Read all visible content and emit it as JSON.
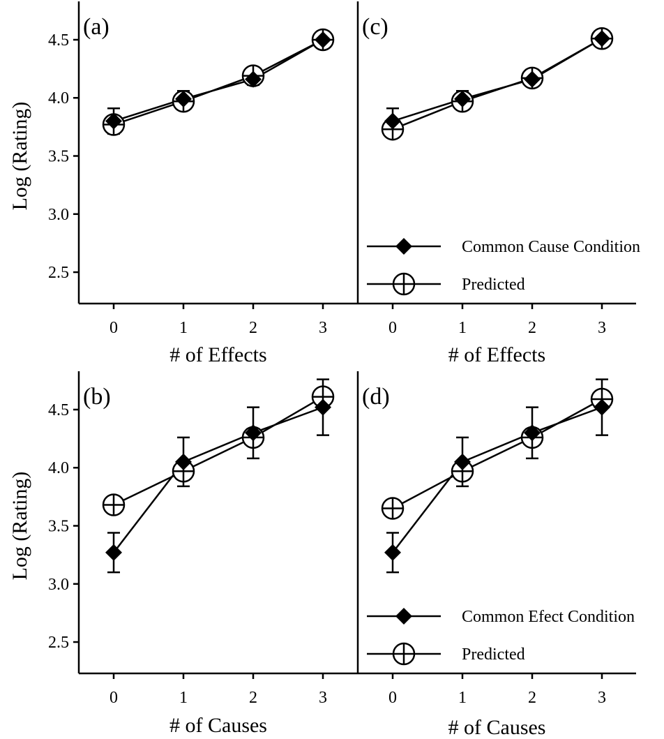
{
  "chart_data": [
    {
      "panel_label": "(a)",
      "type": "line",
      "xlabel": "# of Effects",
      "ylabel": "Log (Rating)",
      "x": [
        0,
        1,
        2,
        3
      ],
      "x_tick_labels": [
        "0",
        "1",
        "2",
        "3"
      ],
      "y_ticks": [
        "2.5",
        "3.0",
        "3.5",
        "4.0",
        "4.5"
      ],
      "ylim": [
        2.23,
        4.77
      ],
      "series": [
        {
          "marker": "diamond",
          "values": [
            3.8,
            3.99,
            4.16,
            4.5
          ],
          "err": [
            0.11,
            0.07,
            0.05,
            0.05
          ]
        },
        {
          "marker": "crossed-circle",
          "values": [
            3.77,
            3.97,
            4.19,
            4.5
          ]
        }
      ],
      "legend": null
    },
    {
      "panel_label": "(c)",
      "type": "line",
      "xlabel": "# of Effects",
      "ylabel": "",
      "x": [
        0,
        1,
        2,
        3
      ],
      "x_tick_labels": [
        "0",
        "1",
        "2",
        "3"
      ],
      "y_ticks": [],
      "ylim": [
        2.23,
        4.77
      ],
      "series": [
        {
          "name": "Common Cause Condition",
          "marker": "diamond",
          "values": [
            3.8,
            3.99,
            4.16,
            4.51
          ],
          "err": [
            0.11,
            0.07,
            0.05,
            0.05
          ]
        },
        {
          "name": "Predicted",
          "marker": "crossed-circle",
          "values": [
            3.73,
            3.97,
            4.17,
            4.51
          ]
        }
      ],
      "legend": "bottom-right"
    },
    {
      "panel_label": "(b)",
      "type": "line",
      "xlabel": "# of Causes",
      "ylabel": "Log (Rating)",
      "x": [
        0,
        1,
        2,
        3
      ],
      "x_tick_labels": [
        "0",
        "1",
        "2",
        "3"
      ],
      "y_ticks": [
        "2.5",
        "3.0",
        "3.5",
        "4.0",
        "4.5"
      ],
      "ylim": [
        2.23,
        4.77
      ],
      "series": [
        {
          "marker": "diamond",
          "values": [
            3.27,
            4.05,
            4.3,
            4.52
          ],
          "err": [
            0.17,
            0.21,
            0.22,
            0.24
          ]
        },
        {
          "marker": "crossed-circle",
          "values": [
            3.68,
            3.97,
            4.26,
            4.61
          ]
        }
      ],
      "legend": null
    },
    {
      "panel_label": "(d)",
      "type": "line",
      "xlabel": "# of Causes",
      "ylabel": "",
      "x": [
        0,
        1,
        2,
        3
      ],
      "x_tick_labels": [
        "0",
        "1",
        "2",
        "3"
      ],
      "y_ticks": [],
      "ylim": [
        2.23,
        4.77
      ],
      "series": [
        {
          "name": "Common Efect Condition",
          "marker": "diamond",
          "values": [
            3.27,
            4.05,
            4.3,
            4.52
          ],
          "err": [
            0.17,
            0.21,
            0.22,
            0.24
          ]
        },
        {
          "name": "Predicted",
          "marker": "crossed-circle",
          "values": [
            3.65,
            3.97,
            4.26,
            4.59
          ]
        }
      ],
      "legend": "bottom-right"
    }
  ]
}
